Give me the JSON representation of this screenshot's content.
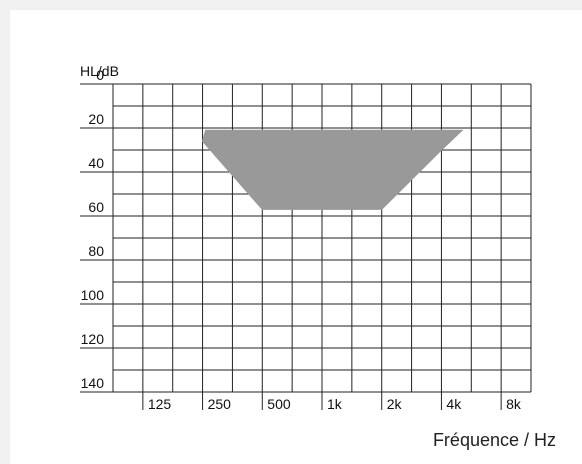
{
  "chart_data": {
    "type": "area",
    "title": "",
    "ylabel": "HL/dB",
    "xlabel": "Fréquence / Hz",
    "y_ticks": [
      "0",
      "20",
      "40",
      "60",
      "80",
      "100",
      "120",
      "140"
    ],
    "x_ticks": [
      "125",
      "250",
      "500",
      "1k",
      "2k",
      "4k",
      "8k"
    ],
    "ylim": [
      0,
      140
    ],
    "y_inverted": true,
    "grid": true,
    "series": [
      {
        "color": "#999999",
        "polygon": [
          {
            "x": "250",
            "y": 21
          },
          {
            "x": "4k+",
            "y": 21
          },
          {
            "x": "4k",
            "y": 30
          },
          {
            "x": "2k",
            "y": 57
          },
          {
            "x": "500",
            "y": 57
          },
          {
            "x": "250",
            "y": 26
          }
        ]
      }
    ]
  }
}
